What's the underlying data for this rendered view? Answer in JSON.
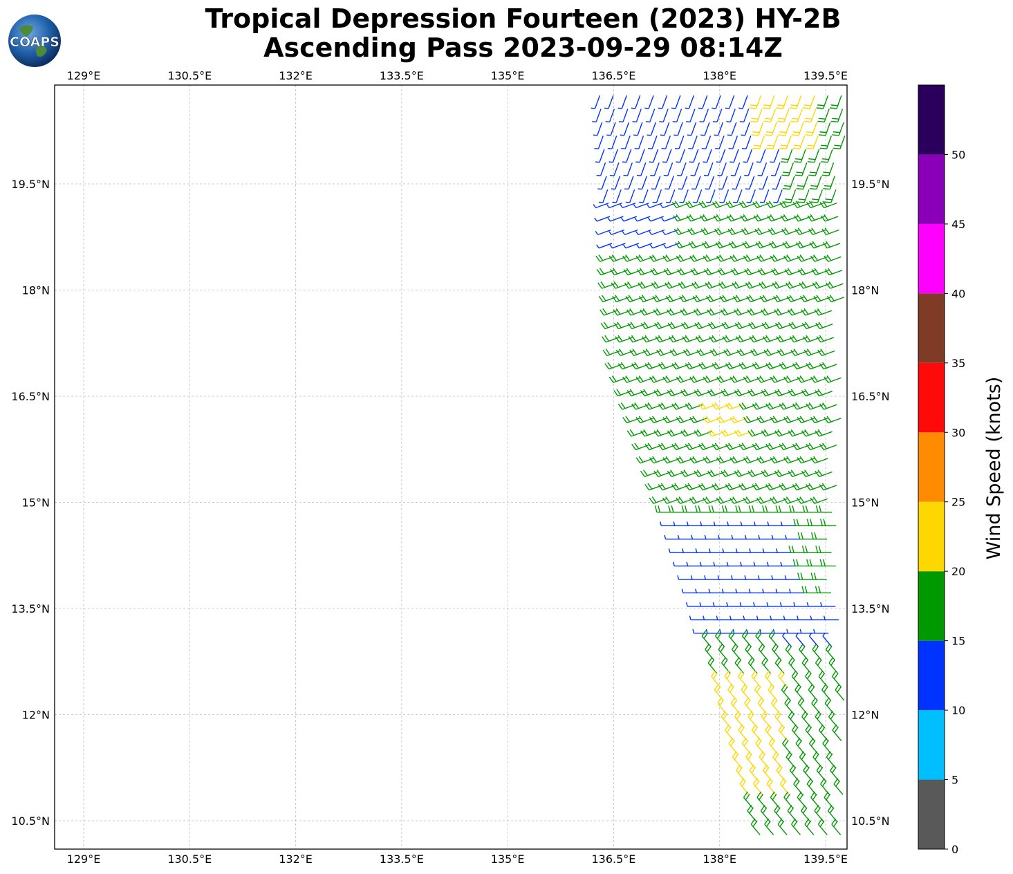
{
  "title": {
    "line1": "Tropical Depression Fourteen (2023) HY-2B",
    "line2": "Ascending Pass 2023-09-29 08:14Z"
  },
  "logo": {
    "text": "COAPS",
    "icon": "globe-icon"
  },
  "map": {
    "lon_labels": [
      "129°E",
      "130.5°E",
      "132°E",
      "133.5°E",
      "135°E",
      "136.5°E",
      "138°E",
      "139.5°E"
    ],
    "lon_values": [
      129,
      130.5,
      132,
      133.5,
      135,
      136.5,
      138,
      139.5
    ],
    "lat_labels": [
      "19.5°N",
      "18°N",
      "16.5°N",
      "15°N",
      "13.5°N",
      "12°N",
      "10.5°N"
    ],
    "lat_values": [
      19.5,
      18,
      16.5,
      15,
      13.5,
      12,
      10.5
    ],
    "lon_range": [
      128.6,
      139.8
    ],
    "lat_range": [
      10.1,
      20.9
    ],
    "grid": true
  },
  "colorbar": {
    "title": "Wind Speed (knots)",
    "tick_labels": [
      "0",
      "5",
      "10",
      "15",
      "20",
      "25",
      "30",
      "35",
      "40",
      "45",
      "50"
    ],
    "range": [
      0,
      55
    ],
    "bins": [
      {
        "from": 0,
        "to": 5,
        "color": "#595959"
      },
      {
        "from": 5,
        "to": 10,
        "color": "#00bfff"
      },
      {
        "from": 10,
        "to": 15,
        "color": "#0033ff"
      },
      {
        "from": 15,
        "to": 20,
        "color": "#009900"
      },
      {
        "from": 20,
        "to": 25,
        "color": "#ffd700"
      },
      {
        "from": 25,
        "to": 30,
        "color": "#ff8c00"
      },
      {
        "from": 30,
        "to": 35,
        "color": "#ff0a0a"
      },
      {
        "from": 35,
        "to": 40,
        "color": "#7f3b26"
      },
      {
        "from": 40,
        "to": 45,
        "color": "#ff00ff"
      },
      {
        "from": 45,
        "to": 50,
        "color": "#8a00b8"
      },
      {
        "from": 50,
        "to": 55,
        "color": "#2b005c"
      }
    ]
  },
  "swath": {
    "description_rows": [
      {
        "lat": 20.8,
        "lon_start": 136.3,
        "lon_end": 139.8
      },
      {
        "lat": 19.0,
        "lon_start": 136.45,
        "lon_end": 139.8
      },
      {
        "lat": 17.0,
        "lon_start": 136.6,
        "lon_end": 139.8
      },
      {
        "lat": 15.5,
        "lon_start": 137.1,
        "lon_end": 139.7
      },
      {
        "lat": 13.5,
        "lon_start": 137.75,
        "lon_end": 139.7
      },
      {
        "lat": 12.0,
        "lon_start": 138.1,
        "lon_end": 139.8
      },
      {
        "lat": 10.2,
        "lon_start": 138.6,
        "lon_end": 139.8
      }
    ]
  }
}
